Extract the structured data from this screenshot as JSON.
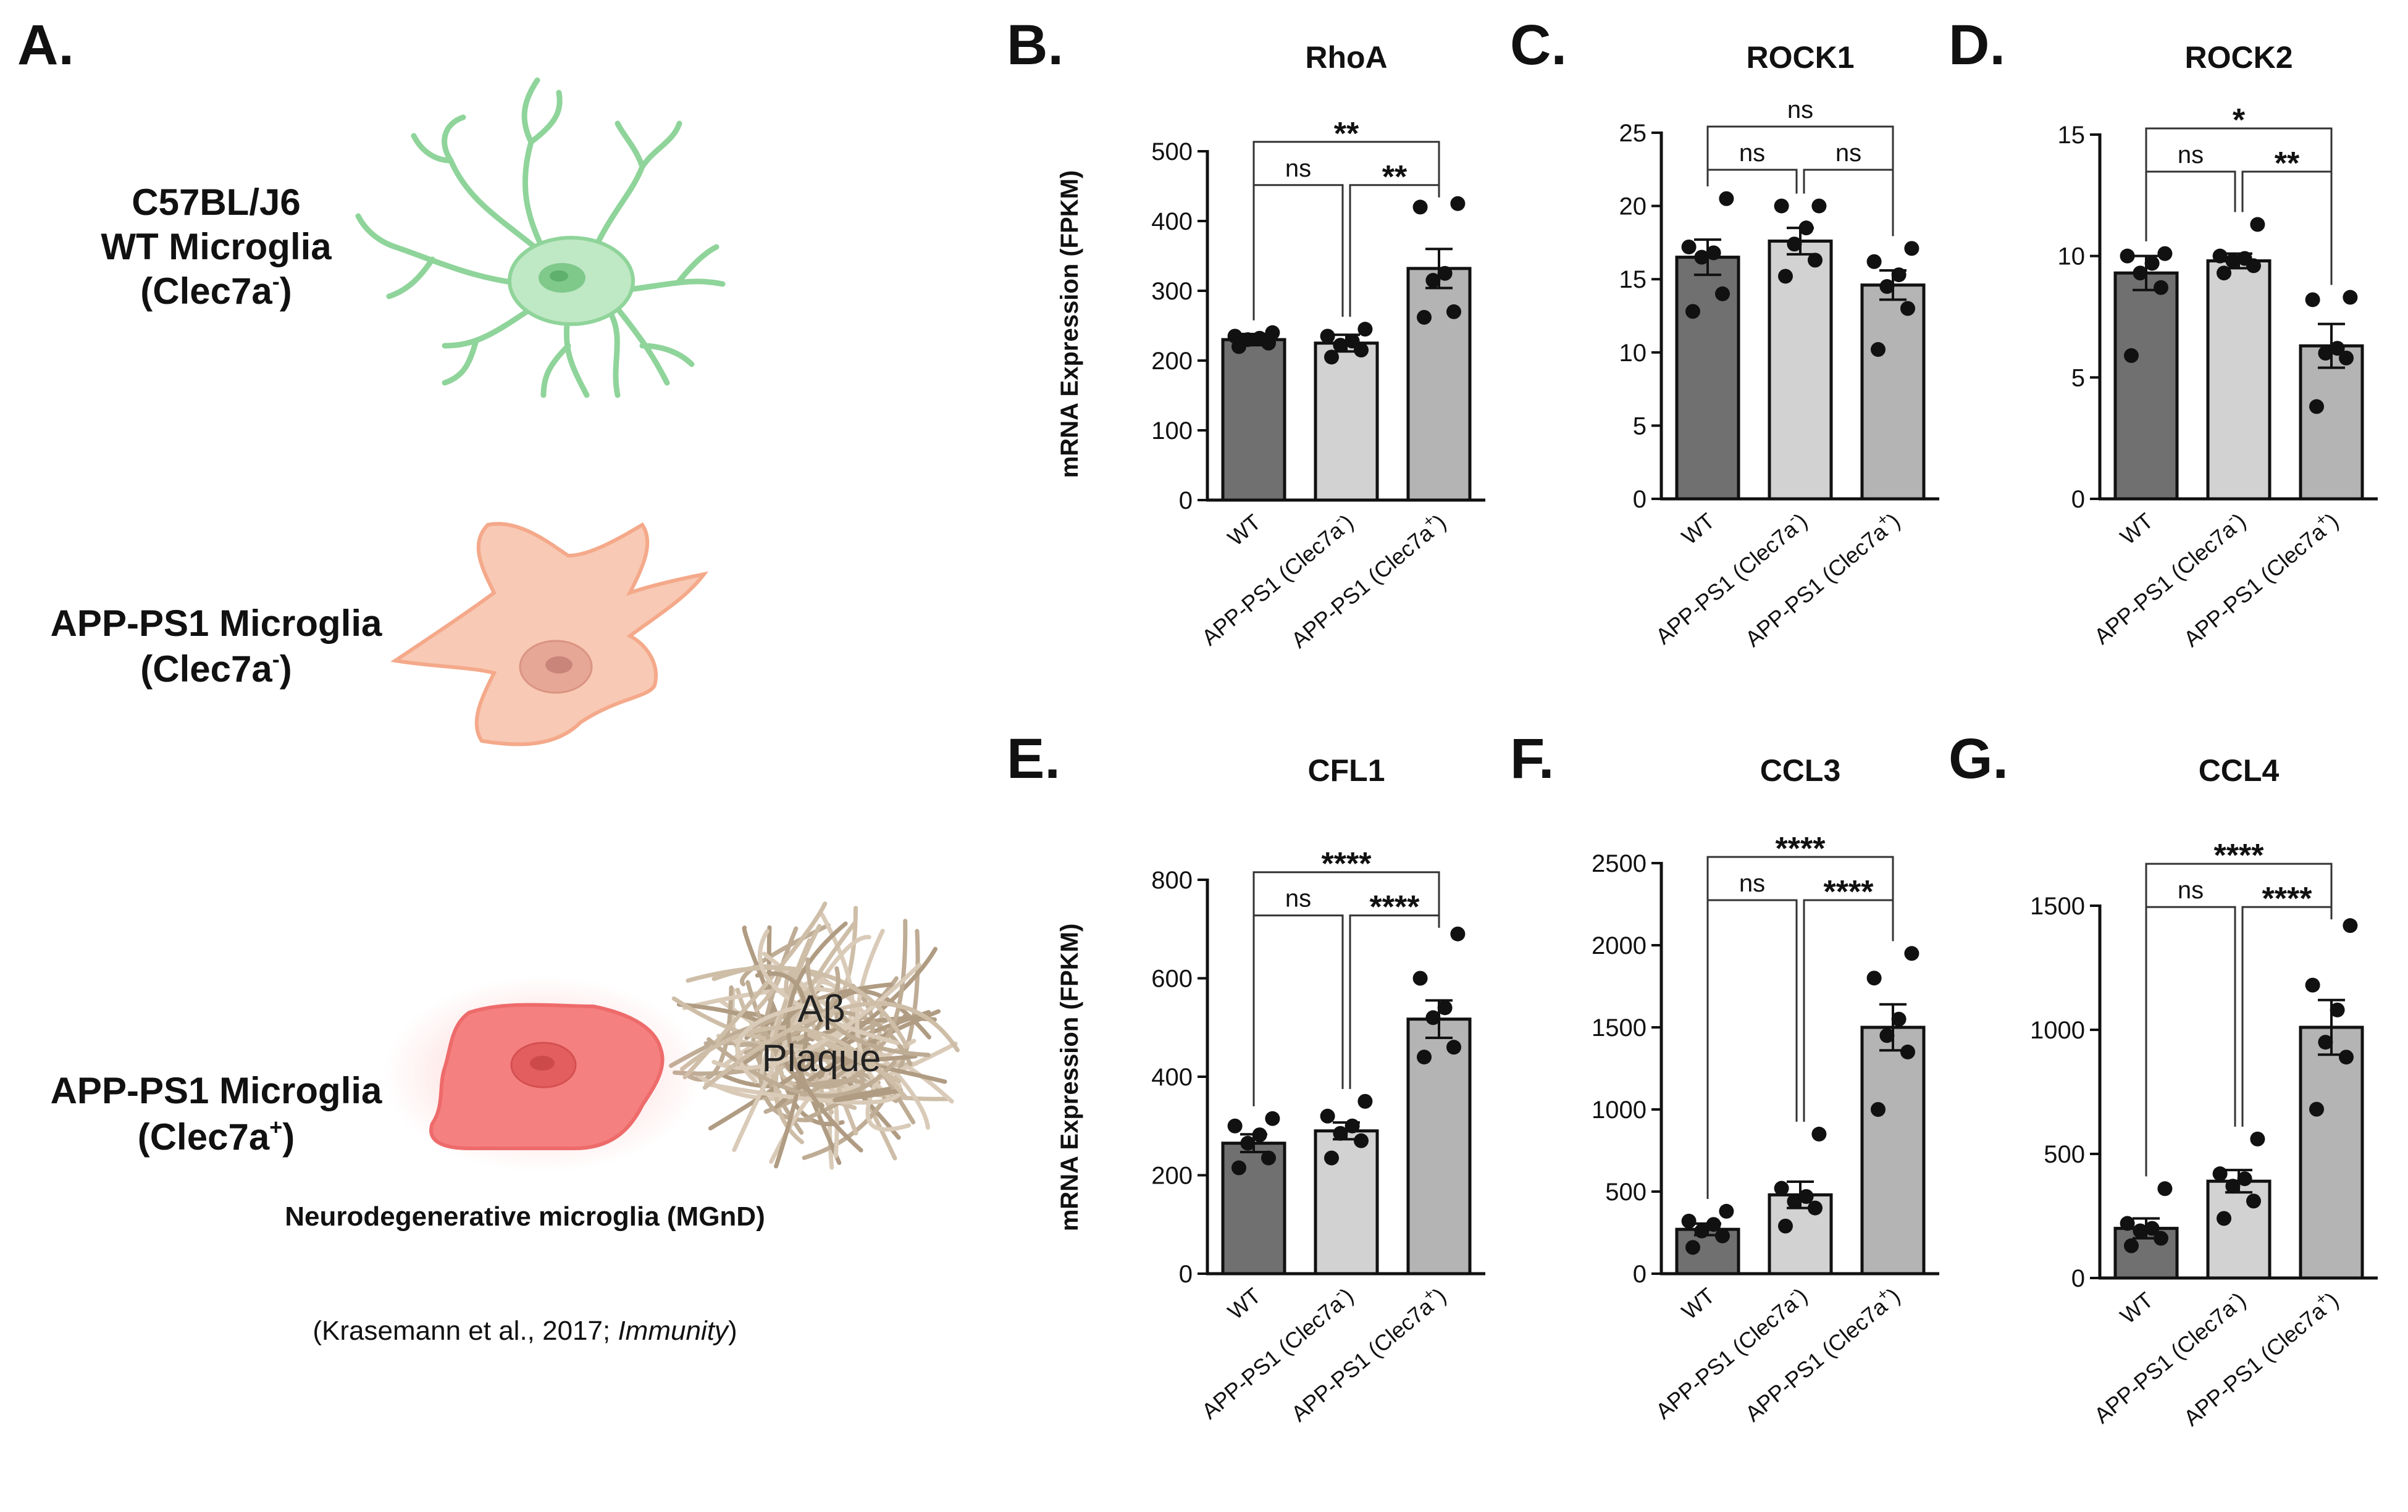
{
  "panel_a": {
    "letter": "A.",
    "cell1_lines": [
      "C57BL/J6",
      "WT Microglia",
      "(Clec7a",
      "-",
      ")"
    ],
    "cell2_lines": [
      "APP-PS1 Microglia",
      "(Clec7a",
      "-",
      ")"
    ],
    "cell3_lines": [
      "APP-PS1 Microglia",
      "(Clec7a",
      "+",
      ")"
    ],
    "plaque_lines": [
      "Aβ",
      "Plaque"
    ],
    "mgnd_label": "Neurodegenerative microglia (MGnD)",
    "citation_prefix": "(Krasemann et al., 2017; ",
    "citation_journal": "Immunity",
    "citation_suffix": ")",
    "colors": {
      "wt": "#8fd49a",
      "clec_neg": "#f4a98a",
      "clec_pos": "#ef6b6b",
      "plaque": "#b8a48a"
    }
  },
  "chart_data": [
    {
      "panel": "B.",
      "type": "bar",
      "title": "RhoA",
      "ylabel": "mRNA Expression (FPKM)",
      "ylim": [
        0,
        500
      ],
      "yticks": [
        0,
        100,
        200,
        300,
        400,
        500
      ],
      "categories": [
        "WT",
        "APP-PS1 (Clec7a",
        "APP-PS1 (Clec7a"
      ],
      "category_superscripts": [
        "",
        "-",
        "+"
      ],
      "category_suffix": [
        "",
        ")",
        ")"
      ],
      "values": [
        230,
        225,
        332
      ],
      "sem": [
        8,
        12,
        28
      ],
      "points": [
        [
          220,
          225,
          230,
          232,
          235,
          240
        ],
        [
          205,
          215,
          222,
          228,
          235,
          245
        ],
        [
          262,
          270,
          315,
          325,
          420,
          425
        ]
      ],
      "bar_colors": [
        "#707070",
        "#d2d2d2",
        "#b4b4b4"
      ],
      "comparisons": [
        {
          "from": 0,
          "to": 1,
          "label": "ns",
          "level": 1
        },
        {
          "from": 1,
          "to": 2,
          "label": "**",
          "level": 1
        },
        {
          "from": 0,
          "to": 2,
          "label": "**",
          "level": 2
        }
      ]
    },
    {
      "panel": "C.",
      "type": "bar",
      "title": "ROCK1",
      "ylabel": "",
      "ylim": [
        0,
        25
      ],
      "yticks": [
        0,
        5,
        10,
        15,
        20,
        25
      ],
      "categories": [
        "WT",
        "APP-PS1 (Clec7a",
        "APP-PS1 (Clec7a"
      ],
      "category_superscripts": [
        "",
        "-",
        "+"
      ],
      "category_suffix": [
        "",
        ")",
        ")"
      ],
      "values": [
        16.5,
        17.6,
        14.6
      ],
      "sem": [
        1.2,
        0.9,
        1.0
      ],
      "points": [
        [
          12.8,
          14.0,
          16.5,
          16.8,
          17.2,
          20.5
        ],
        [
          15.2,
          16.3,
          17.4,
          18.5,
          20.0,
          20.0
        ],
        [
          10.2,
          13.0,
          14.5,
          15.3,
          16.2,
          17.1
        ]
      ],
      "bar_colors": [
        "#707070",
        "#d2d2d2",
        "#b4b4b4"
      ],
      "comparisons": [
        {
          "from": 0,
          "to": 1,
          "label": "ns",
          "level": 1
        },
        {
          "from": 1,
          "to": 2,
          "label": "ns",
          "level": 1
        },
        {
          "from": 0,
          "to": 2,
          "label": "ns",
          "level": 2
        }
      ]
    },
    {
      "panel": "D.",
      "type": "bar",
      "title": "ROCK2",
      "ylabel": "",
      "ylim": [
        0,
        15
      ],
      "yticks": [
        0,
        5,
        10,
        15
      ],
      "categories": [
        "WT",
        "APP-PS1 (Clec7a",
        "APP-PS1 (Clec7a"
      ],
      "category_superscripts": [
        "",
        "-",
        "+"
      ],
      "category_suffix": [
        "",
        ")",
        ")"
      ],
      "values": [
        9.3,
        9.8,
        6.3
      ],
      "sem": [
        0.7,
        0.3,
        0.9
      ],
      "points": [
        [
          5.9,
          8.7,
          9.3,
          9.7,
          10.0,
          10.1
        ],
        [
          9.3,
          9.6,
          9.8,
          9.9,
          10.0,
          11.3
        ],
        [
          3.8,
          5.8,
          6.0,
          6.2,
          8.2,
          8.3
        ]
      ],
      "bar_colors": [
        "#707070",
        "#d2d2d2",
        "#b4b4b4"
      ],
      "comparisons": [
        {
          "from": 0,
          "to": 1,
          "label": "ns",
          "level": 1
        },
        {
          "from": 1,
          "to": 2,
          "label": "**",
          "level": 1
        },
        {
          "from": 0,
          "to": 2,
          "label": "*",
          "level": 2
        }
      ]
    },
    {
      "panel": "E.",
      "type": "bar",
      "title": "CFL1",
      "ylabel": "mRNA Expression (FPKM)",
      "ylim": [
        0,
        800
      ],
      "yticks": [
        0,
        200,
        400,
        600,
        800
      ],
      "categories": [
        "WT",
        "APP-PS1 (Clec7a",
        "APP-PS1 (Clec7a"
      ],
      "category_superscripts": [
        "",
        "-",
        "+"
      ],
      "category_suffix": [
        "",
        ")",
        ")"
      ],
      "values": [
        265,
        290,
        517
      ],
      "sem": [
        18,
        17,
        38
      ],
      "points": [
        [
          215,
          235,
          265,
          282,
          300,
          315
        ],
        [
          235,
          270,
          285,
          300,
          320,
          350
        ],
        [
          440,
          460,
          520,
          540,
          600,
          690
        ]
      ],
      "bar_colors": [
        "#707070",
        "#d2d2d2",
        "#b4b4b4"
      ],
      "comparisons": [
        {
          "from": 0,
          "to": 1,
          "label": "ns",
          "level": 1
        },
        {
          "from": 1,
          "to": 2,
          "label": "****",
          "level": 1
        },
        {
          "from": 0,
          "to": 2,
          "label": "****",
          "level": 2
        }
      ]
    },
    {
      "panel": "F.",
      "type": "bar",
      "title": "CCL3",
      "ylabel": "",
      "ylim": [
        0,
        2500
      ],
      "yticks": [
        0,
        500,
        1000,
        1500,
        2000,
        2500
      ],
      "categories": [
        "WT",
        "APP-PS1 (Clec7a",
        "APP-PS1 (Clec7a"
      ],
      "category_superscripts": [
        "",
        "-",
        "+"
      ],
      "category_suffix": [
        "",
        ")",
        ")"
      ],
      "values": [
        270,
        480,
        1500
      ],
      "sem": [
        35,
        80,
        140
      ],
      "points": [
        [
          160,
          230,
          260,
          300,
          320,
          380
        ],
        [
          290,
          400,
          440,
          470,
          520,
          850
        ],
        [
          1000,
          1350,
          1450,
          1550,
          1800,
          1950
        ]
      ],
      "bar_colors": [
        "#707070",
        "#d2d2d2",
        "#b4b4b4"
      ],
      "comparisons": [
        {
          "from": 0,
          "to": 1,
          "label": "ns",
          "level": 1
        },
        {
          "from": 1,
          "to": 2,
          "label": "****",
          "level": 1
        },
        {
          "from": 0,
          "to": 2,
          "label": "****",
          "level": 2
        }
      ]
    },
    {
      "panel": "G.",
      "type": "bar",
      "title": "CCL4",
      "ylabel": "",
      "ylim": [
        0,
        1500
      ],
      "yticks": [
        0,
        500,
        1000,
        1500
      ],
      "categories": [
        "WT",
        "APP-PS1 (Clec7a",
        "APP-PS1 (Clec7a"
      ],
      "category_superscripts": [
        "",
        "-",
        "+"
      ],
      "category_suffix": [
        "",
        ")",
        ")"
      ],
      "values": [
        200,
        390,
        1010
      ],
      "sem": [
        40,
        45,
        110
      ],
      "points": [
        [
          130,
          160,
          190,
          200,
          220,
          360
        ],
        [
          240,
          310,
          370,
          400,
          420,
          560
        ],
        [
          680,
          890,
          950,
          1080,
          1180,
          1420
        ]
      ],
      "bar_colors": [
        "#707070",
        "#d2d2d2",
        "#b4b4b4"
      ],
      "comparisons": [
        {
          "from": 0,
          "to": 1,
          "label": "ns",
          "level": 1
        },
        {
          "from": 1,
          "to": 2,
          "label": "****",
          "level": 1
        },
        {
          "from": 0,
          "to": 2,
          "label": "****",
          "level": 2
        }
      ]
    }
  ]
}
